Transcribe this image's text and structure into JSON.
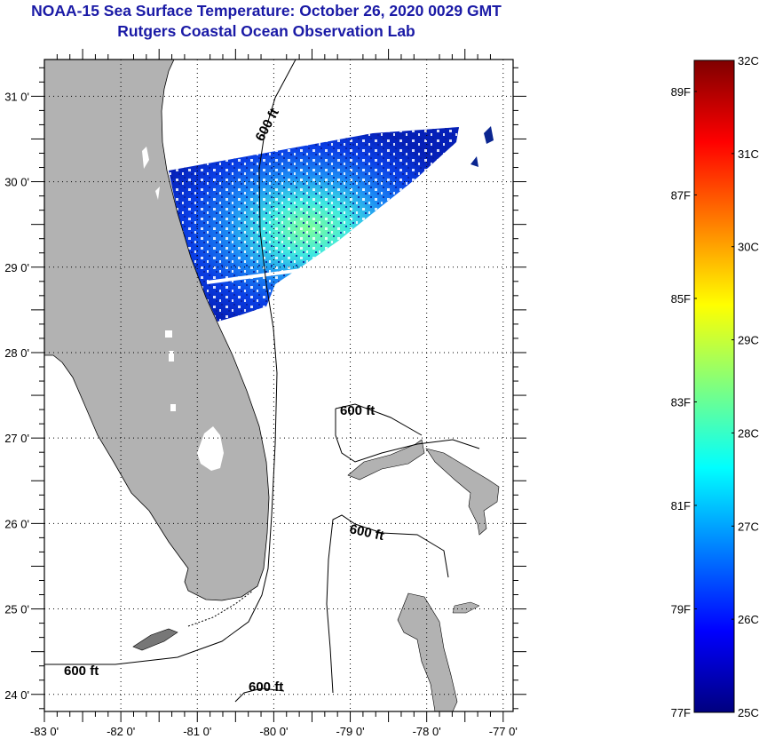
{
  "header": {
    "title": "NOAA-15 Sea Surface Temperature:  October 26, 2020 0029 GMT",
    "subtitle": "Rutgers Coastal Ocean Observation Lab"
  },
  "map": {
    "lon_range": [
      -83,
      -76.87
    ],
    "lat_range": [
      23.8,
      31.43
    ],
    "lon_ticks": [
      {
        "value": -83,
        "label": "-83 0'"
      },
      {
        "value": -82,
        "label": "-82 0'"
      },
      {
        "value": -81,
        "label": "-81 0'"
      },
      {
        "value": -80,
        "label": "-80 0'"
      },
      {
        "value": -79,
        "label": "-79 0'"
      },
      {
        "value": -78,
        "label": "-78 0'"
      },
      {
        "value": -77,
        "label": "-77 0'"
      }
    ],
    "lat_ticks": [
      {
        "value": 31,
        "label": "31 0'"
      },
      {
        "value": 30,
        "label": "30 0'"
      },
      {
        "value": 29,
        "label": "29 0'"
      },
      {
        "value": 28,
        "label": "28 0'"
      },
      {
        "value": 27,
        "label": "27 0'"
      },
      {
        "value": 26,
        "label": "26 0'"
      },
      {
        "value": 25,
        "label": "25 0'"
      },
      {
        "value": 24,
        "label": "24 0'"
      }
    ],
    "contour_labels": [
      "600 ft",
      "600 ft",
      "600 ft",
      "600 ft",
      "600 ft"
    ],
    "land_color": "#b2b2b2",
    "grid_color": "#000000"
  },
  "colorbar": {
    "min_c": 25,
    "max_c": 32,
    "celsius_labels": [
      {
        "value": 32,
        "label": "32C"
      },
      {
        "value": 31,
        "label": "31C"
      },
      {
        "value": 30,
        "label": "30C"
      },
      {
        "value": 29,
        "label": "29C"
      },
      {
        "value": 28,
        "label": "28C"
      },
      {
        "value": 27,
        "label": "27C"
      },
      {
        "value": 26,
        "label": "26C"
      },
      {
        "value": 25,
        "label": "25C"
      }
    ],
    "fahrenheit_labels": [
      {
        "value": 89,
        "label": "89F"
      },
      {
        "value": 87,
        "label": "87F"
      },
      {
        "value": 85,
        "label": "85F"
      },
      {
        "value": 83,
        "label": "83F"
      },
      {
        "value": 81,
        "label": "81F"
      },
      {
        "value": 79,
        "label": "79F"
      },
      {
        "value": 77,
        "label": "77F"
      }
    ],
    "colors": [
      "#00007f",
      "#0000ff",
      "#007fff",
      "#00ffff",
      "#7fff7f",
      "#ffff00",
      "#ff7f00",
      "#ff0000",
      "#7f0000"
    ]
  }
}
